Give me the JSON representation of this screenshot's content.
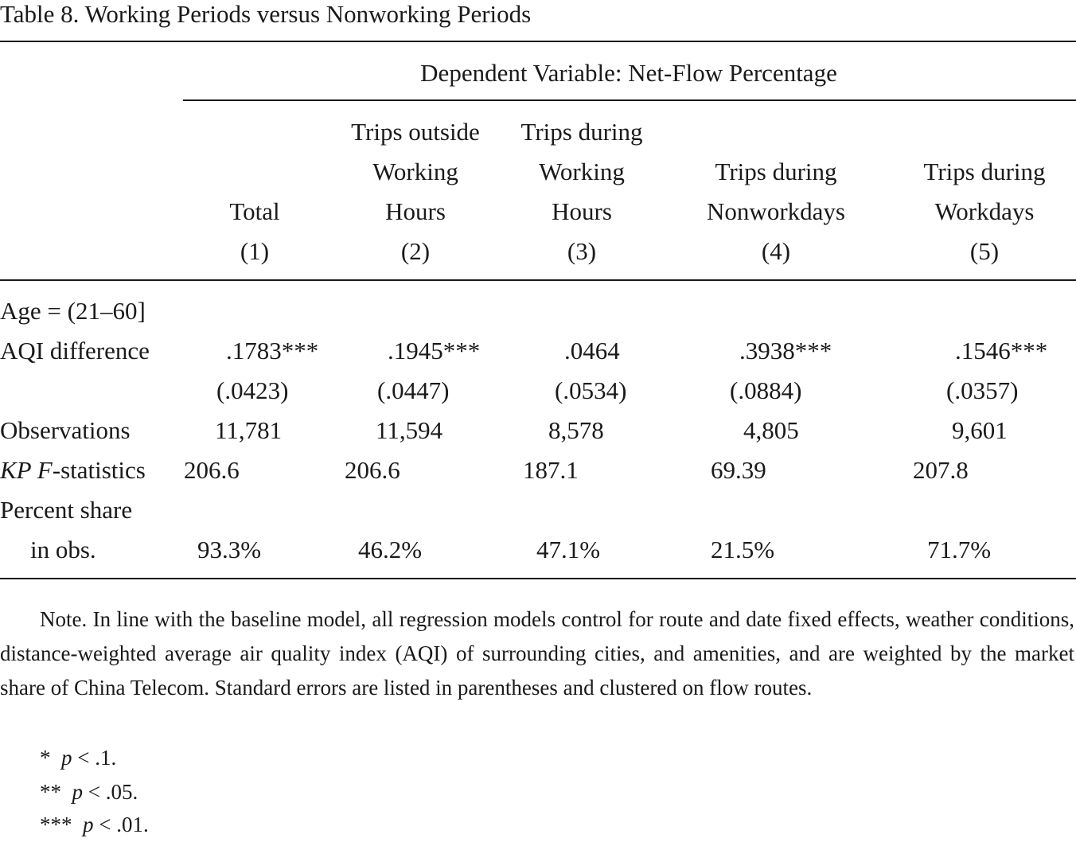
{
  "title": "Table 8. Working Periods versus Nonworking Periods",
  "spanner": "Dependent Variable: Net-Flow Percentage",
  "columns": [
    {
      "lines": [
        "",
        "",
        "Total",
        "(1)"
      ]
    },
    {
      "lines": [
        "Trips outside",
        "Working",
        "Hours",
        "(2)"
      ]
    },
    {
      "lines": [
        "Trips during",
        "Working",
        "Hours",
        "(3)"
      ]
    },
    {
      "lines": [
        "",
        "Trips during",
        "Nonworkdays",
        "(4)"
      ]
    },
    {
      "lines": [
        "",
        "Trips during",
        "Workdays",
        "(5)"
      ]
    }
  ],
  "rows": {
    "group_label": "Age = (21–60]",
    "aqi": {
      "label": "AQI difference",
      "values": [
        ".1783***",
        ".1945***",
        ".0464",
        ".3938***",
        ".1546***"
      ]
    },
    "se": {
      "values": [
        "(.0423)",
        "(.0447)",
        "(.0534)",
        "(.0884)",
        "(.0357)"
      ]
    },
    "obs": {
      "label": "Observations",
      "values": [
        "11,781",
        "11,594",
        "8,578",
        "4,805",
        "9,601"
      ]
    },
    "kp": {
      "label_italic": "KP F",
      "label_rest": "-statistics",
      "values": [
        "206.6",
        "206.6",
        "187.1",
        "69.39",
        "207.8"
      ]
    },
    "share": {
      "label_line1": "Percent share",
      "label_line2": "in obs.",
      "values": [
        "93.3%",
        "46.2%",
        "47.1%",
        "21.5%",
        "71.7%"
      ]
    }
  },
  "notes": {
    "paragraph": "Note. In line with the baseline model, all regression models control for route and date fixed effects, weather conditions, distance-weighted average air quality index (AQI) of surrounding cities, and amenities, and are weighted by the market share of China Telecom. Standard errors are listed in parentheses and clustered on flow routes.",
    "sig": [
      {
        "stars": "*",
        "p": "p",
        "rest": " < .1."
      },
      {
        "stars": "**",
        "p": "p",
        "rest": " < .05."
      },
      {
        "stars": "***",
        "p": "p",
        "rest": " < .01."
      }
    ]
  }
}
